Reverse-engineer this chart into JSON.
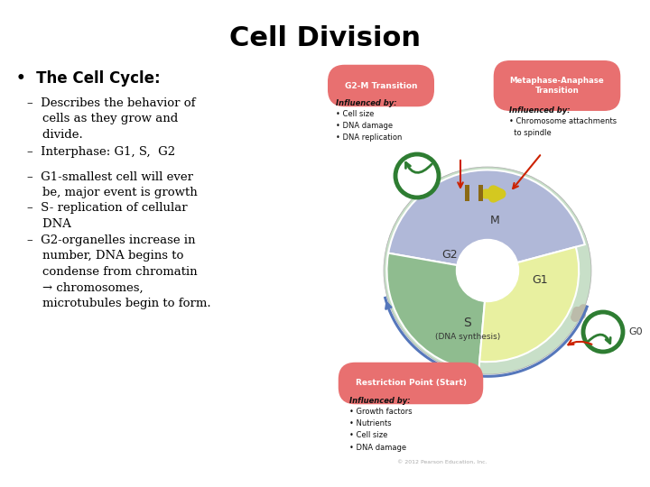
{
  "title": "Cell Division",
  "title_fontsize": 22,
  "title_fontweight": "bold",
  "background_color": "#ffffff",
  "bullet_text": "•  The Cell Cycle:",
  "bullet_fontsize": 12,
  "bullet_fontweight": "bold",
  "dash_items": [
    "–  Describes the behavior of\n    cells as they grow and\n    divide.",
    "–  Interphase: G1, S,  G2",
    "–  G1-smallest cell will ever\n    be, major event is growth",
    "–  S- replication of cellular\n    DNA",
    "–  G2-organelles increase in\n    number, DNA begins to\n    condense from chromatin\n    → chromosomes,\n    microtubules begin to form."
  ],
  "dash_fontsize": 9.5,
  "colors": {
    "large_circle": "#c8dfc8",
    "g1_sector": "#c8dfc8",
    "g2_sector": "#8fbc8f",
    "m_sector": "#e8f0a0",
    "s_sector": "#b0b8d8",
    "green_ring": "#2e7d32",
    "arrow_red": "#cc2200",
    "arrow_blue": "#5577bb",
    "arrow_gray": "#aaaaaa",
    "box_pink": "#e87070",
    "text_dark": "#111111",
    "text_label": "#333333",
    "bar_brown": "#8B6914",
    "bar_yellow": "#e8d800"
  },
  "copyright": "© 2012 Pearson Education, Inc."
}
